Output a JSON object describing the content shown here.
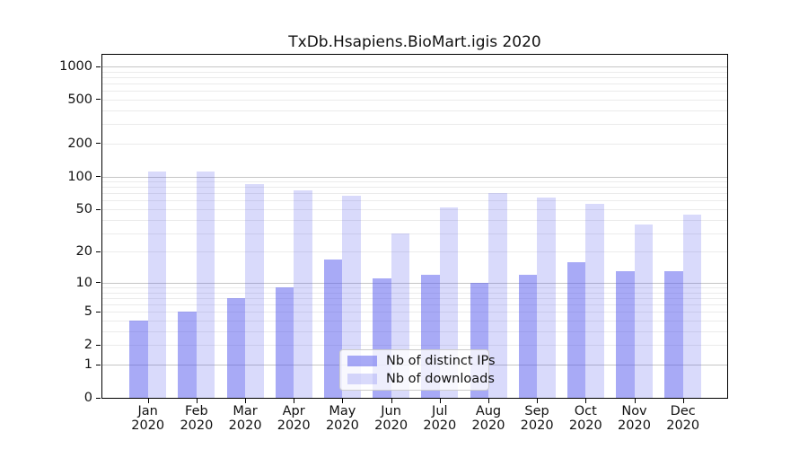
{
  "chart_data": {
    "type": "bar",
    "title": "TxDb.Hsapiens.BioMart.igis 2020",
    "categories": [
      "Jan 2020",
      "Feb 2020",
      "Mar 2020",
      "Apr 2020",
      "May 2020",
      "Jun 2020",
      "Jul 2020",
      "Aug 2020",
      "Sep 2020",
      "Oct 2020",
      "Nov 2020",
      "Dec 2020"
    ],
    "series": [
      {
        "name": "Nb of distinct IPs",
        "color": "rgba(82,86,237,0.50)",
        "values": [
          4,
          5,
          7,
          9,
          17,
          11,
          12,
          10,
          12,
          16,
          13,
          13
        ]
      },
      {
        "name": "Nb of downloads",
        "color": "rgba(82,86,237,0.22)",
        "values": [
          112,
          112,
          85,
          75,
          67,
          30,
          52,
          70,
          64,
          56,
          36,
          45
        ]
      }
    ],
    "xlabel": "",
    "ylabel": "",
    "y_scale": "log10(value+1)",
    "ylim": [
      0,
      1275
    ],
    "y_ticks": [
      0,
      1,
      2,
      5,
      10,
      20,
      50,
      100,
      200,
      500,
      1000
    ],
    "major_gridlines": [
      1,
      10,
      100,
      1000
    ],
    "minor_gridlines": [
      2,
      3,
      4,
      5,
      6,
      7,
      8,
      9,
      20,
      30,
      40,
      50,
      60,
      70,
      80,
      90,
      200,
      300,
      400,
      500,
      600,
      700,
      800,
      900
    ],
    "grid": "on",
    "legend_position": "lower center",
    "colors": {
      "bar_dark_hex": "#aaabf6",
      "bar_light_hex": "#dbdcfa",
      "major_grid": "#c6c6c6",
      "minor_grid": "#ebebeb",
      "axis": "#000000",
      "text": "#111111"
    }
  }
}
